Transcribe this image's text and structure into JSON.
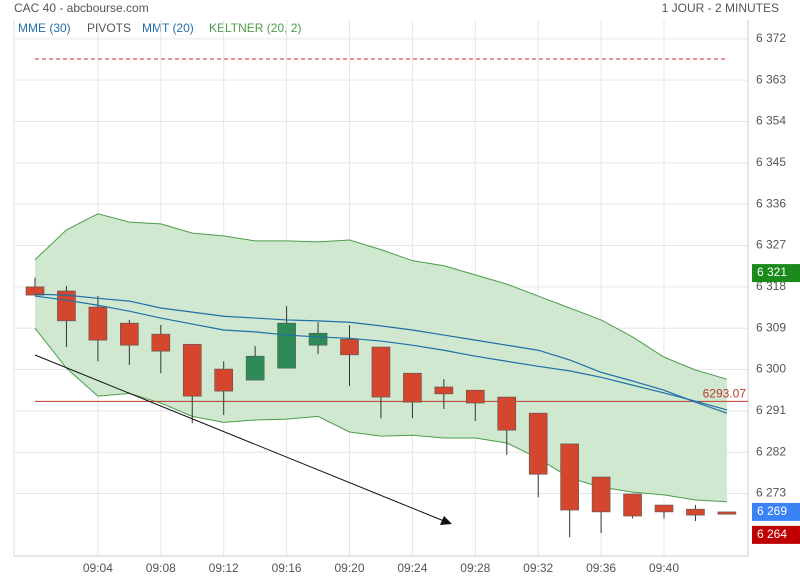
{
  "chart_data": {
    "type": "candlestick",
    "title": "CAC 40 - abcbourse.com",
    "subtitle": "1 JOUR - 2 MINUTES",
    "categories": [
      null,
      null,
      "09:04",
      null,
      "09:08",
      null,
      "09:12",
      null,
      "09:16",
      null,
      "09:20",
      null,
      "09:24",
      null,
      "09:28",
      null,
      "09:32",
      null,
      "09:36",
      null,
      "09:40",
      null,
      null
    ],
    "open": [
      6318.0,
      6317.1,
      6313.6,
      6310.1,
      6307.7,
      6305.5,
      6300.1,
      6297.7,
      6300.3,
      6305.3,
      6306.6,
      6304.9,
      6299.2,
      6296.2,
      6295.5,
      6294.0,
      6290.5,
      6283.8,
      6276.6,
      6272.9,
      6270.5,
      6269.6,
      6269.0
    ],
    "high": [
      6320.0,
      6318.2,
      6316.0,
      6310.8,
      6309.7,
      6305.5,
      6301.8,
      6305.1,
      6313.8,
      6310.3,
      6309.7,
      6304.9,
      6299.2,
      6297.9,
      6295.5,
      6294.0,
      6290.5,
      6283.8,
      6276.6,
      6272.9,
      6270.5,
      6270.5,
      6269.0
    ],
    "low": [
      6316.2,
      6304.9,
      6301.8,
      6301.0,
      6299.2,
      6288.3,
      6290.1,
      6297.7,
      6300.3,
      6303.4,
      6296.4,
      6289.4,
      6289.4,
      6291.4,
      6288.8,
      6281.4,
      6272.2,
      6263.5,
      6264.4,
      6267.6,
      6267.6,
      6267.0,
      6268.5
    ],
    "close": [
      6316.2,
      6310.6,
      6306.4,
      6305.3,
      6304.0,
      6294.2,
      6295.3,
      6302.9,
      6310.1,
      6307.9,
      6303.2,
      6294.0,
      6292.9,
      6294.7,
      6292.7,
      6286.8,
      6277.2,
      6269.4,
      6269.0,
      6268.1,
      6269.0,
      6268.3,
      6268.5
    ],
    "up_color": "#2e8b57",
    "down_color": "#d4472e",
    "indicators": [
      {
        "name": "MME (30)",
        "color": "#1f6fa8",
        "values": [
          6316.4,
          6316.2,
          6315.5,
          6314.9,
          6313.4,
          6312.5,
          6311.6,
          6311.2,
          6310.8,
          6310.6,
          6310.3,
          6309.5,
          6308.6,
          6307.5,
          6306.4,
          6305.3,
          6304.2,
          6302.1,
          6299.4,
          6297.5,
          6295.5,
          6292.9,
          6290.5
        ]
      },
      {
        "name": "MMT (20)",
        "color": "#1f6fa8",
        "values": [
          6316.0,
          6315.1,
          6314.0,
          6312.7,
          6311.2,
          6309.9,
          6308.6,
          6308.2,
          6307.5,
          6307.1,
          6306.8,
          6306.2,
          6305.3,
          6304.2,
          6302.9,
          6301.8,
          6300.7,
          6299.7,
          6298.3,
          6296.6,
          6294.9,
          6293.1,
          6291.2
        ]
      }
    ],
    "keltner": {
      "name": "KELTNER (20, 2)",
      "color": "#4a9e4a",
      "fill": "#cfe8cf",
      "upper": [
        6323.9,
        6330.4,
        6333.9,
        6332.1,
        6331.7,
        6329.7,
        6329.1,
        6328.0,
        6328.0,
        6327.8,
        6328.2,
        6326.1,
        6323.7,
        6322.6,
        6320.6,
        6318.6,
        6316.0,
        6313.4,
        6310.8,
        6307.1,
        6302.7,
        6299.9,
        6297.9
      ],
      "lower": [
        6309.0,
        6300.3,
        6294.2,
        6294.8,
        6292.7,
        6289.8,
        6288.5,
        6289.0,
        6289.2,
        6289.8,
        6286.4,
        6285.5,
        6285.7,
        6285.1,
        6285.1,
        6284.0,
        6280.7,
        6276.4,
        6274.4,
        6273.3,
        6272.7,
        6271.6,
        6271.2
      ]
    },
    "pivots": {
      "name": "PIVOTS",
      "color": "#555555",
      "line_color": "#d03030",
      "value": 6367.6
    },
    "level": {
      "value": 6293.07,
      "color": "#c0392b"
    },
    "price_labels": [
      {
        "value": 6321,
        "label": "6 321",
        "color": "#1a8a1a"
      },
      {
        "value": 6269,
        "label": "6 269",
        "color": "#3b82f6"
      },
      {
        "value": 6264,
        "label": "6 264",
        "color": "#c00000"
      }
    ],
    "ylim": [
      6259.4,
      6376.1
    ],
    "yticks": [
      {
        "value": 6273,
        "label": "6 273"
      },
      {
        "value": 6282,
        "label": "6 282"
      },
      {
        "value": 6291,
        "label": "6 291"
      },
      {
        "value": 6300,
        "label": "6 300"
      },
      {
        "value": 6309,
        "label": "6 309"
      },
      {
        "value": 6318,
        "label": "6 318"
      },
      {
        "value": 6327,
        "label": "6 327"
      },
      {
        "value": 6336,
        "label": "6 336"
      },
      {
        "value": 6345,
        "label": "6 345"
      },
      {
        "value": 6354,
        "label": "6 354"
      },
      {
        "value": 6363,
        "label": "6 363"
      },
      {
        "value": 6372,
        "label": "6 372"
      }
    ],
    "grid": true
  }
}
